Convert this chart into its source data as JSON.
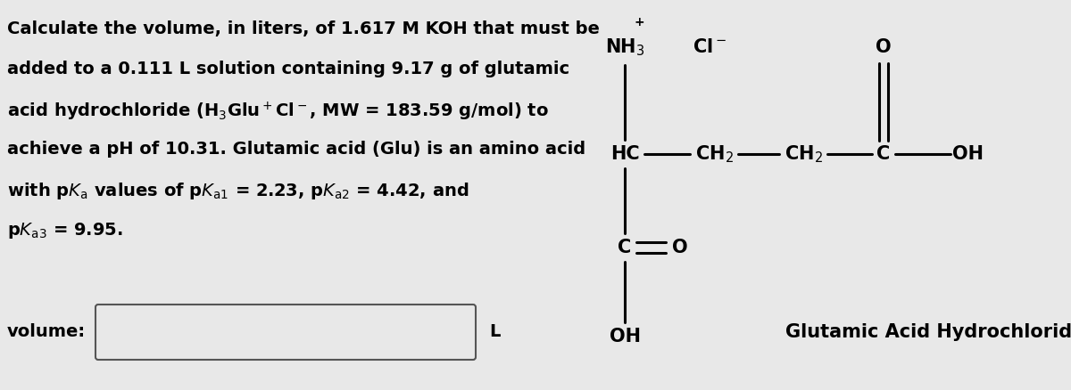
{
  "bg_color": "#e8e8e8",
  "font_size_main": 14,
  "font_size_volume": 14,
  "font_size_struct": 15,
  "font_size_caption": 15,
  "struct_caption": "Glutamic Acid Hydrochloride",
  "volume_label": "volume:",
  "L_label": "L",
  "line_texts": [
    "Calculate the volume, in liters, of 1.617 M KOH that must be",
    "added to a 0.111 L solution containing 9.17 g of glutamic",
    "acid hydrochloride (H$_3$Glu$^+$Cl$^-$, MW = 183.59 g/mol) to",
    "achieve a pH of 10.31. Glutamic acid (Glu) is an amino acid",
    "with p$K_\\mathrm{a}$ values of p$K_\\mathrm{a1}$ = 2.23, p$K_\\mathrm{a2}$ = 4.42, and",
    "p$K_\\mathrm{a3}$ = 9.95."
  ]
}
